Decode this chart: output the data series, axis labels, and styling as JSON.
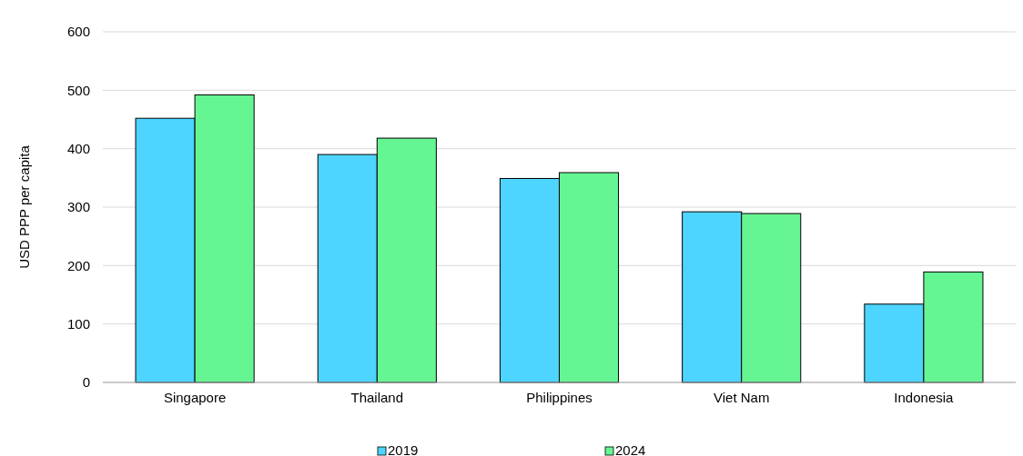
{
  "chart_data": {
    "type": "bar",
    "ylabel": "USD PPP per capita",
    "categories": [
      "Singapore",
      "Thailand",
      "Philippines",
      "Viet Nam",
      "Indonesia"
    ],
    "series": [
      {
        "name": "2019",
        "color": "#4dd4ff",
        "values": [
          452,
          390,
          349,
          292,
          134
        ]
      },
      {
        "name": "2024",
        "color": "#66f593",
        "values": [
          492,
          418,
          359,
          289,
          189
        ]
      }
    ],
    "ylim": [
      0,
      600
    ],
    "yticks": [
      0,
      100,
      200,
      300,
      400,
      500,
      600
    ],
    "grid": "y",
    "legend": "bottom"
  }
}
